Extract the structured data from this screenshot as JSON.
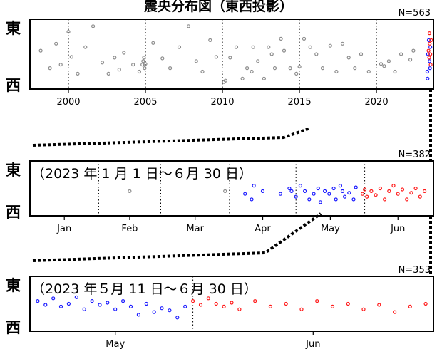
{
  "title": "震央分布図（東西投影）",
  "colors": {
    "gray": "#8c8c8c",
    "blue": "#1a1aff",
    "red": "#ff1a1a",
    "axis": "#000000"
  },
  "chart_data": [
    {
      "type": "scatter",
      "panel": "top",
      "n_label": "N=563",
      "ylabel_top": "東",
      "ylabel_bottom": "西",
      "x_unit": "year",
      "xlim": [
        1997.5,
        2023.7
      ],
      "x_ticks": [
        2000,
        2005,
        2010,
        2015,
        2020
      ],
      "x_tick_labels": [
        "2000",
        "2005",
        "2010",
        "2015",
        "2020"
      ],
      "dotted_gridlines": true,
      "series": [
        {
          "color": "gray",
          "points": [
            [
              1998.2,
              0.55
            ],
            [
              1998.8,
              0.3
            ],
            [
              1999.2,
              0.65
            ],
            [
              1999.5,
              0.35
            ],
            [
              2000.0,
              0.82
            ],
            [
              2000.2,
              0.46
            ],
            [
              2000.6,
              0.22
            ],
            [
              2001.1,
              0.6
            ],
            [
              2001.6,
              0.9
            ],
            [
              2002.2,
              0.38
            ],
            [
              2002.6,
              0.22
            ],
            [
              2003.0,
              0.45
            ],
            [
              2003.3,
              0.28
            ],
            [
              2003.6,
              0.52
            ],
            [
              2004.2,
              0.35
            ],
            [
              2004.6,
              0.25
            ],
            [
              2004.8,
              0.35
            ],
            [
              2004.85,
              0.4
            ],
            [
              2004.9,
              0.45
            ],
            [
              2004.95,
              0.3
            ],
            [
              2005.0,
              0.36
            ],
            [
              2005.5,
              0.66
            ],
            [
              2006.1,
              0.44
            ],
            [
              2006.6,
              0.3
            ],
            [
              2007.2,
              0.6
            ],
            [
              2007.8,
              0.9
            ],
            [
              2008.3,
              0.4
            ],
            [
              2008.7,
              0.25
            ],
            [
              2009.2,
              0.7
            ],
            [
              2009.6,
              0.46
            ],
            [
              2010.1,
              0.1
            ],
            [
              2010.2,
              0.12
            ],
            [
              2010.5,
              0.45
            ],
            [
              2010.9,
              0.6
            ],
            [
              2011.3,
              0.15
            ],
            [
              2011.6,
              0.3
            ],
            [
              2011.9,
              0.25
            ],
            [
              2012.0,
              0.6
            ],
            [
              2012.3,
              0.4
            ],
            [
              2012.7,
              0.15
            ],
            [
              2013.0,
              0.6
            ],
            [
              2013.2,
              0.5
            ],
            [
              2013.4,
              0.3
            ],
            [
              2013.8,
              0.72
            ],
            [
              2014.0,
              0.55
            ],
            [
              2014.4,
              0.3
            ],
            [
              2014.8,
              0.22
            ],
            [
              2015.0,
              0.32
            ],
            [
              2015.3,
              0.72
            ],
            [
              2015.7,
              0.6
            ],
            [
              2016.1,
              0.5
            ],
            [
              2016.5,
              0.3
            ],
            [
              2017.0,
              0.62
            ],
            [
              2017.4,
              0.25
            ],
            [
              2017.8,
              0.65
            ],
            [
              2018.2,
              0.45
            ],
            [
              2018.6,
              0.3
            ],
            [
              2019.0,
              0.5
            ],
            [
              2019.5,
              0.25
            ],
            [
              2020.3,
              0.36
            ],
            [
              2020.5,
              0.33
            ],
            [
              2020.8,
              0.4
            ],
            [
              2021.2,
              0.25
            ],
            [
              2021.6,
              0.5
            ],
            [
              2022.2,
              0.42
            ],
            [
              2022.4,
              0.55
            ]
          ]
        },
        {
          "color": "blue",
          "points": [
            [
              2023.3,
              0.25
            ],
            [
              2023.35,
              0.5
            ],
            [
              2023.4,
              0.7
            ],
            [
              2023.45,
              0.4
            ],
            [
              2023.5,
              0.6
            ],
            [
              2023.32,
              0.15
            ],
            [
              2023.48,
              0.3
            ]
          ]
        },
        {
          "color": "red",
          "points": [
            [
              2023.38,
              0.55
            ],
            [
              2023.42,
              0.45
            ],
            [
              2023.46,
              0.65
            ],
            [
              2023.5,
              0.5
            ],
            [
              2023.55,
              0.7
            ],
            [
              2023.52,
              0.35
            ],
            [
              2023.44,
              0.8
            ]
          ]
        }
      ]
    },
    {
      "type": "scatter",
      "panel": "middle",
      "n_label": "N=382",
      "range_label": "（2023 年 1 月 1 日～６月 30 日）",
      "ylabel_top": "東",
      "ylabel_bottom": "西",
      "x_unit": "day of 2023",
      "xlim": [
        0,
        182
      ],
      "month_boundaries": [
        31,
        59,
        90,
        120,
        151
      ],
      "x_ticks": [
        15.5,
        45,
        74.5,
        105,
        135.5,
        166
      ],
      "x_tick_labels": [
        "Jan",
        "Feb",
        "Mar",
        "Apr",
        "May",
        "Jun"
      ],
      "dotted_gridlines": true,
      "series": [
        {
          "color": "gray",
          "points": [
            [
              45,
              0.45
            ],
            [
              88,
              0.45
            ]
          ]
        },
        {
          "color": "blue",
          "points": [
            [
              97,
              0.4
            ],
            [
              100,
              0.3
            ],
            [
              101,
              0.55
            ],
            [
              105,
              0.45
            ],
            [
              113,
              0.4
            ],
            [
              117,
              0.5
            ],
            [
              118,
              0.45
            ],
            [
              120,
              0.35
            ],
            [
              122,
              0.55
            ],
            [
              124,
              0.45
            ],
            [
              126,
              0.3
            ],
            [
              128,
              0.4
            ],
            [
              130,
              0.5
            ],
            [
              131,
              0.25
            ],
            [
              133,
              0.45
            ],
            [
              135,
              0.4
            ],
            [
              137,
              0.5
            ],
            [
              138,
              0.3
            ],
            [
              140,
              0.55
            ],
            [
              141,
              0.45
            ],
            [
              142,
              0.35
            ],
            [
              144,
              0.42
            ],
            [
              146,
              0.3
            ],
            [
              147,
              0.52
            ]
          ]
        },
        {
          "color": "red",
          "points": [
            [
              150,
              0.4
            ],
            [
              151,
              0.48
            ],
            [
              152,
              0.35
            ],
            [
              154,
              0.45
            ],
            [
              156,
              0.38
            ],
            [
              158,
              0.5
            ],
            [
              160,
              0.3
            ],
            [
              162,
              0.45
            ],
            [
              164,
              0.55
            ],
            [
              166,
              0.4
            ],
            [
              168,
              0.48
            ],
            [
              170,
              0.3
            ],
            [
              172,
              0.42
            ],
            [
              174,
              0.5
            ],
            [
              176,
              0.35
            ],
            [
              178,
              0.45
            ]
          ]
        }
      ]
    },
    {
      "type": "scatter",
      "panel": "bottom",
      "n_label": "N=353",
      "range_label": "（2023 年５月 11 日～６月 30 日）",
      "ylabel_top": "東",
      "ylabel_bottom": "西",
      "x_unit": "day of 2023",
      "xlim": [
        130,
        182
      ],
      "month_boundaries": [
        151
      ],
      "x_ticks": [
        141,
        166.5
      ],
      "x_tick_labels": [
        "May",
        "Jun"
      ],
      "dotted_gridlines": true,
      "series": [
        {
          "color": "blue",
          "points": [
            [
              131,
              0.55
            ],
            [
              132,
              0.48
            ],
            [
              133,
              0.6
            ],
            [
              134,
              0.45
            ],
            [
              135,
              0.5
            ],
            [
              136,
              0.62
            ],
            [
              137,
              0.4
            ],
            [
              138,
              0.55
            ],
            [
              139,
              0.48
            ],
            [
              140,
              0.52
            ],
            [
              141,
              0.4
            ],
            [
              142,
              0.55
            ],
            [
              143,
              0.45
            ],
            [
              144,
              0.3
            ],
            [
              145,
              0.5
            ],
            [
              146,
              0.35
            ],
            [
              147,
              0.42
            ],
            [
              148,
              0.38
            ],
            [
              149,
              0.25
            ],
            [
              150,
              0.45
            ]
          ]
        },
        {
          "color": "red",
          "points": [
            [
              151,
              0.55
            ],
            [
              152,
              0.48
            ],
            [
              153,
              0.6
            ],
            [
              154,
              0.5
            ],
            [
              155,
              0.45
            ],
            [
              156,
              0.52
            ],
            [
              157,
              0.4
            ],
            [
              159,
              0.55
            ],
            [
              161,
              0.45
            ],
            [
              163,
              0.5
            ],
            [
              165,
              0.4
            ],
            [
              167,
              0.55
            ],
            [
              169,
              0.45
            ],
            [
              171,
              0.5
            ],
            [
              173,
              0.4
            ],
            [
              175,
              0.48
            ],
            [
              177,
              0.35
            ],
            [
              179,
              0.45
            ],
            [
              181,
              0.5
            ]
          ]
        }
      ]
    }
  ]
}
